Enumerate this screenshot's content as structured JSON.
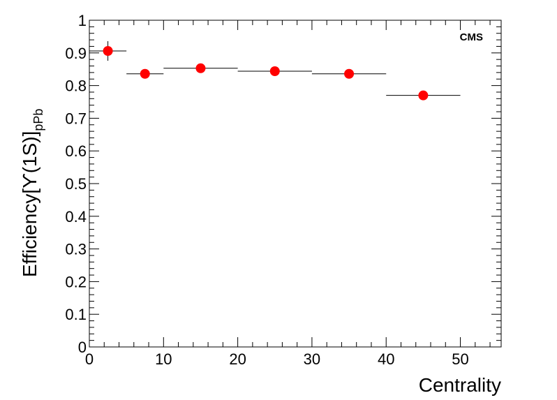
{
  "chart_data": {
    "type": "scatter",
    "title": "",
    "xlabel": "Centrality",
    "ylabel_main": "Efficiency[ϒ(1S)]",
    "ylabel_sub": "pPb",
    "annotation": "CMS",
    "xlim": [
      0,
      55.5
    ],
    "ylim": [
      0,
      1
    ],
    "x_ticks": [
      0,
      10,
      20,
      30,
      40,
      50
    ],
    "x_tick_labels": [
      "0",
      "10",
      "20",
      "30",
      "40",
      "50"
    ],
    "y_ticks": [
      0,
      0.1,
      0.2,
      0.3,
      0.4,
      0.5,
      0.6,
      0.7,
      0.8,
      0.9,
      1
    ],
    "y_tick_labels": [
      "0",
      "0.1",
      "0.2",
      "0.3",
      "0.4",
      "0.5",
      "0.6",
      "0.7",
      "0.8",
      "0.9",
      "1"
    ],
    "grid": false,
    "marker_color": "#ff0000",
    "points": [
      {
        "x": 2.5,
        "y": 0.906,
        "x_low": 0,
        "x_high": 5,
        "y_err": 0.03
      },
      {
        "x": 7.5,
        "y": 0.836,
        "x_low": 5,
        "x_high": 10,
        "y_err": 0
      },
      {
        "x": 15,
        "y": 0.853,
        "x_low": 10,
        "x_high": 20,
        "y_err": 0
      },
      {
        "x": 25,
        "y": 0.844,
        "x_low": 20,
        "x_high": 30,
        "y_err": 0
      },
      {
        "x": 35,
        "y": 0.836,
        "x_low": 30,
        "x_high": 40,
        "y_err": 0
      },
      {
        "x": 45,
        "y": 0.77,
        "x_low": 40,
        "x_high": 50,
        "y_err": 0
      }
    ]
  }
}
